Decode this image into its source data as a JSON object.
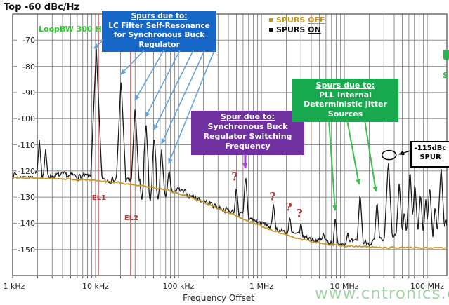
{
  "title": "Top  -60 dBc/Hz",
  "loop_bw_label": "LoopBW 300 Hz",
  "legend": {
    "items": [
      {
        "prefix": "SPURS ",
        "suffix": "OFF",
        "color": "#C8951B"
      },
      {
        "prefix": "SPURS ",
        "suffix": "ON",
        "color": "#111111"
      }
    ]
  },
  "annotations": {
    "lc_box": {
      "color": "#1767C8",
      "lines": [
        "Spurs due to:",
        "LC Filter Self-Resonance",
        "for Synchronous Buck",
        "Regulator"
      ]
    },
    "buck_box": {
      "color": "#7030A0",
      "lines": [
        "Spur due to:",
        "Synchronous Buck",
        "Regulator Switching",
        "Frequency"
      ]
    },
    "pll_box": {
      "color": "#18A94F",
      "lines": [
        "Spurs due to:",
        "PLL Internal",
        "Deterministic Jitter",
        "Sources"
      ]
    },
    "spur_label": {
      "lines": [
        "-115dBc",
        "SPUR"
      ]
    },
    "question_mark": "?",
    "el_markers": [
      {
        "label": "EL1",
        "freq_hz": 10800
      },
      {
        "label": "EL2",
        "freq_hz": 26500
      }
    ],
    "clipped_fragment_text": "S"
  },
  "watermark": "www.cntronics.com",
  "chart_data": {
    "type": "line",
    "title": "Top -60 dBc/Hz",
    "xlabel": "Frequency Offset",
    "x_ticks": [
      "1 kHz",
      "10 kHz",
      "100 kHz",
      "1 MHz",
      "10 MHz",
      "100 MHz"
    ],
    "x_tick_hz": [
      1000,
      10000,
      100000,
      1000000,
      10000000,
      100000000
    ],
    "xlim_hz": [
      1000,
      173000000
    ],
    "y_unit": "dBc/Hz",
    "y_ticks": [
      -70,
      -80,
      -90,
      -100,
      -110,
      -120,
      -130,
      -140,
      -150
    ],
    "ylim": [
      -160,
      -60
    ],
    "grid": true,
    "legend_position": "top-center",
    "series": [
      {
        "name": "SPURS ON",
        "color": "#1A1A1A",
        "baseline_dbc_per_hz": [
          [
            1000,
            -121.2
          ],
          [
            1800,
            -121.5
          ],
          [
            3200,
            -121.8
          ],
          [
            6000,
            -122
          ],
          [
            9000,
            -122.4
          ],
          [
            13000,
            -123
          ],
          [
            20000,
            -123.3
          ],
          [
            30000,
            -124
          ],
          [
            50000,
            -125
          ],
          [
            80000,
            -126.3
          ],
          [
            100000,
            -127.5
          ],
          [
            150000,
            -129.8
          ],
          [
            220000,
            -132
          ],
          [
            320000,
            -134
          ],
          [
            480000,
            -136
          ],
          [
            700000,
            -138
          ],
          [
            1000000,
            -140
          ],
          [
            1700000,
            -142.8
          ],
          [
            3000000,
            -145
          ],
          [
            5000000,
            -146.5
          ],
          [
            8000000,
            -147.3
          ],
          [
            15000000,
            -147.6
          ],
          [
            25000000,
            -147
          ],
          [
            40000000,
            -145
          ],
          [
            70000000,
            -144.5
          ],
          [
            120000000,
            -145
          ],
          [
            173000000,
            -143.5
          ]
        ],
        "spurs_hz_dbc": [
          [
            2100,
            -108
          ],
          [
            2500,
            -111.5
          ],
          [
            10200,
            -73
          ],
          [
            20300,
            -84.5
          ],
          [
            30000,
            -95
          ],
          [
            40500,
            -101
          ],
          [
            51000,
            -106
          ],
          [
            62500,
            -111.5
          ],
          [
            77000,
            -119.5
          ],
          [
            13500,
            -124.5
          ],
          [
            36000,
            -132
          ],
          [
            45500,
            -132.5
          ],
          [
            56500,
            -131.5
          ],
          [
            70000,
            -130.5
          ],
          [
            86000,
            -128.5
          ],
          [
            500000,
            -125.5
          ],
          [
            645000,
            -121
          ],
          [
            1400000,
            -132
          ],
          [
            2200000,
            -137
          ],
          [
            3000000,
            -139.5
          ],
          [
            5600000,
            -143.5
          ],
          [
            7800000,
            -137.5
          ],
          [
            11000000,
            -143.5
          ],
          [
            15500000,
            -128
          ],
          [
            24800000,
            -131
          ],
          [
            34000000,
            -115.5
          ],
          [
            46000000,
            -124
          ],
          [
            53000000,
            -135
          ],
          [
            62000000,
            -119
          ],
          [
            71000000,
            -124
          ],
          [
            83000000,
            -128
          ],
          [
            96000000,
            -130.5
          ],
          [
            107000000,
            -125
          ],
          [
            125000000,
            -133
          ],
          [
            147000000,
            -118
          ],
          [
            168000000,
            -138
          ]
        ]
      },
      {
        "name": "SPURS OFF",
        "color": "#C9972E",
        "baseline_dbc_per_hz": [
          [
            1000,
            -122.6
          ],
          [
            3000,
            -122.9
          ],
          [
            10000,
            -123.6
          ],
          [
            20000,
            -124.6
          ],
          [
            40000,
            -125.8
          ],
          [
            80000,
            -127.6
          ],
          [
            150000,
            -130.3
          ],
          [
            300000,
            -134.3
          ],
          [
            600000,
            -138.3
          ],
          [
            1200000,
            -142
          ],
          [
            2500000,
            -145.5
          ],
          [
            5000000,
            -147.5
          ],
          [
            10000000,
            -148.7
          ],
          [
            30000000,
            -149.2
          ],
          [
            173000000,
            -149.4
          ]
        ],
        "spurs_hz_dbc": []
      }
    ],
    "highlighted_spur": {
      "freq_hz": 34000000,
      "level_dbc": -115
    }
  }
}
